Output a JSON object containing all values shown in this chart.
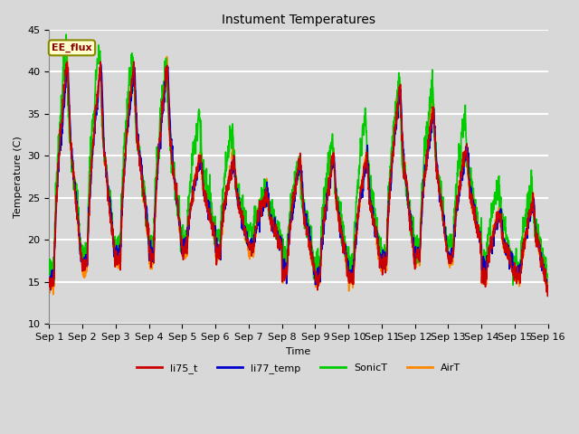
{
  "title": "Instument Temperatures",
  "xlabel": "Time",
  "ylabel": "Temperature (C)",
  "ylim": [
    10,
    45
  ],
  "xlim": [
    0,
    15
  ],
  "background_color": "#d8d8d8",
  "plot_bg_color": "#d8d8d8",
  "grid_color": "white",
  "annotation_text": "EE_flux",
  "annotation_box_color": "#ffffcc",
  "annotation_text_color": "#8b0000",
  "xtick_labels": [
    "Sep 1",
    "Sep 2",
    "Sep 3",
    "Sep 4",
    "Sep 5",
    "Sep 6",
    "Sep 7",
    "Sep 8",
    "Sep 9",
    "Sep 10",
    "Sep 11",
    "Sep 12",
    "Sep 13",
    "Sep 14",
    "Sep 15",
    "Sep 16"
  ],
  "ytick_values": [
    10,
    15,
    20,
    25,
    30,
    35,
    40,
    45
  ],
  "colors": {
    "li75_t": "#cc0000",
    "li77_temp": "#0000cc",
    "SonicT": "#00cc00",
    "AirT": "#ff8800"
  },
  "legend_labels": [
    "li75_t",
    "li77_temp",
    "SonicT",
    "AirT"
  ]
}
